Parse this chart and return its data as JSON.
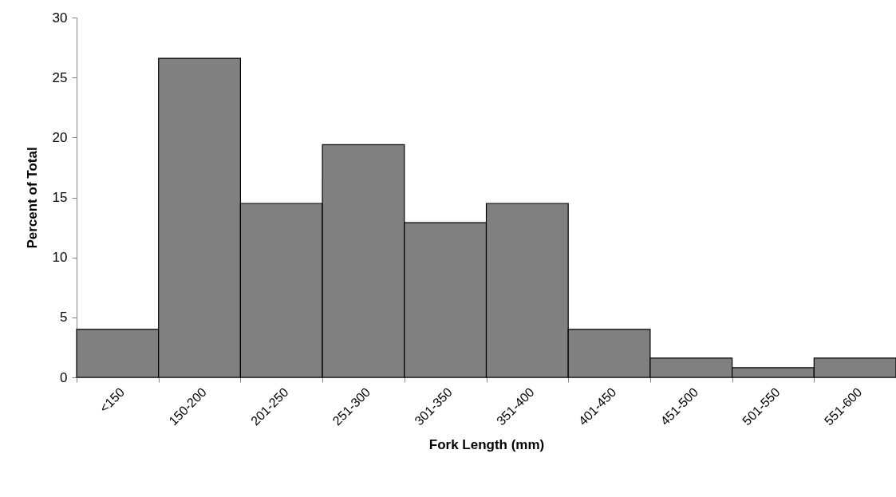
{
  "chart_data": {
    "type": "bar",
    "xlabel": "Fork Length (mm)",
    "ylabel": "Percent of Total",
    "categories": [
      "<150",
      "150-200",
      "201-250",
      "251-300",
      "301-350",
      "351-400",
      "401-450",
      "451-500",
      "501-550",
      "551-600"
    ],
    "values": [
      4.0,
      26.6,
      14.5,
      19.4,
      12.9,
      14.5,
      4.0,
      1.6,
      0.8,
      1.6
    ],
    "color": "#808080",
    "ylim": [
      0,
      30
    ],
    "yticks": [
      0,
      5,
      10,
      15,
      20,
      25,
      30
    ],
    "grid": false,
    "legend": false
  }
}
